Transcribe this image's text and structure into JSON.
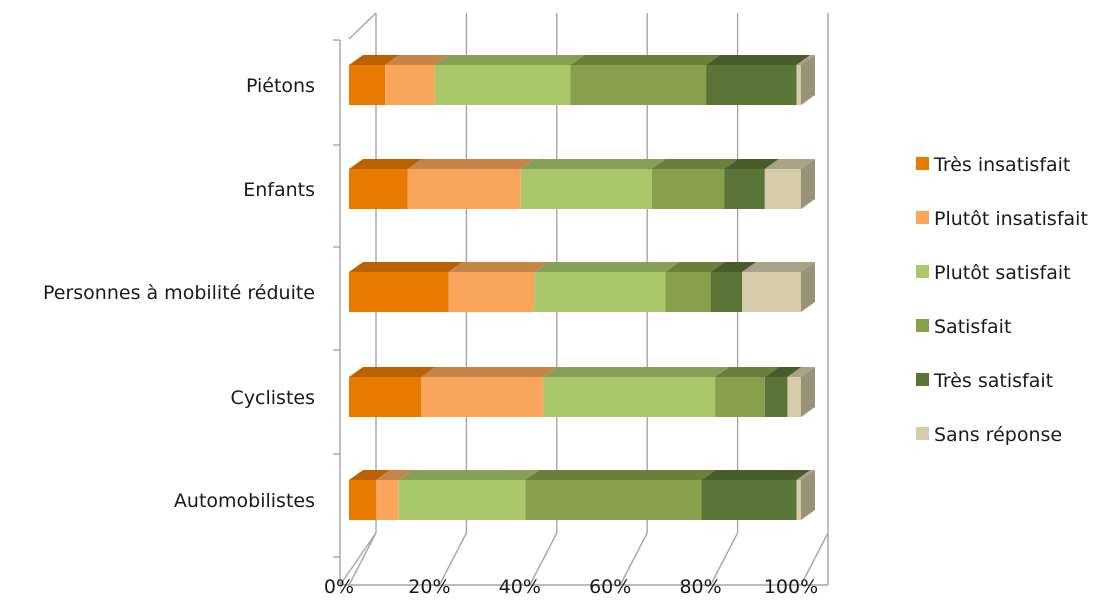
{
  "chart_data": {
    "type": "bar",
    "orientation": "horizontal",
    "stacked": "percent",
    "style": "3d",
    "categories": [
      "Piétons",
      "Enfants",
      "Personnes à mobilité réduite",
      "Cyclistes",
      "Automobilistes"
    ],
    "series": [
      {
        "name": "Très insatisfait",
        "color": "#E87A00",
        "values": [
          8,
          13,
          22,
          16,
          6
        ]
      },
      {
        "name": "Plutôt insatisfait",
        "color": "#F9A55B",
        "values": [
          11,
          25,
          19,
          27,
          5
        ]
      },
      {
        "name": "Plutôt satisfait",
        "color": "#A8C86A",
        "values": [
          30,
          29,
          29,
          38,
          28
        ]
      },
      {
        "name": "Satisfait",
        "color": "#86A04B",
        "values": [
          30,
          16,
          10,
          11,
          39
        ]
      },
      {
        "name": "Très satisfait",
        "color": "#5A7535",
        "values": [
          20,
          9,
          7,
          5,
          21
        ]
      },
      {
        "name": "Sans réponse",
        "color": "#D6CCAA",
        "values": [
          1,
          8,
          13,
          3,
          1
        ]
      }
    ],
    "xlim": [
      0,
      100
    ],
    "x_ticks": [
      "0%",
      "20%",
      "40%",
      "60%",
      "80%",
      "100%"
    ],
    "grid": true,
    "legend_position": "right"
  }
}
